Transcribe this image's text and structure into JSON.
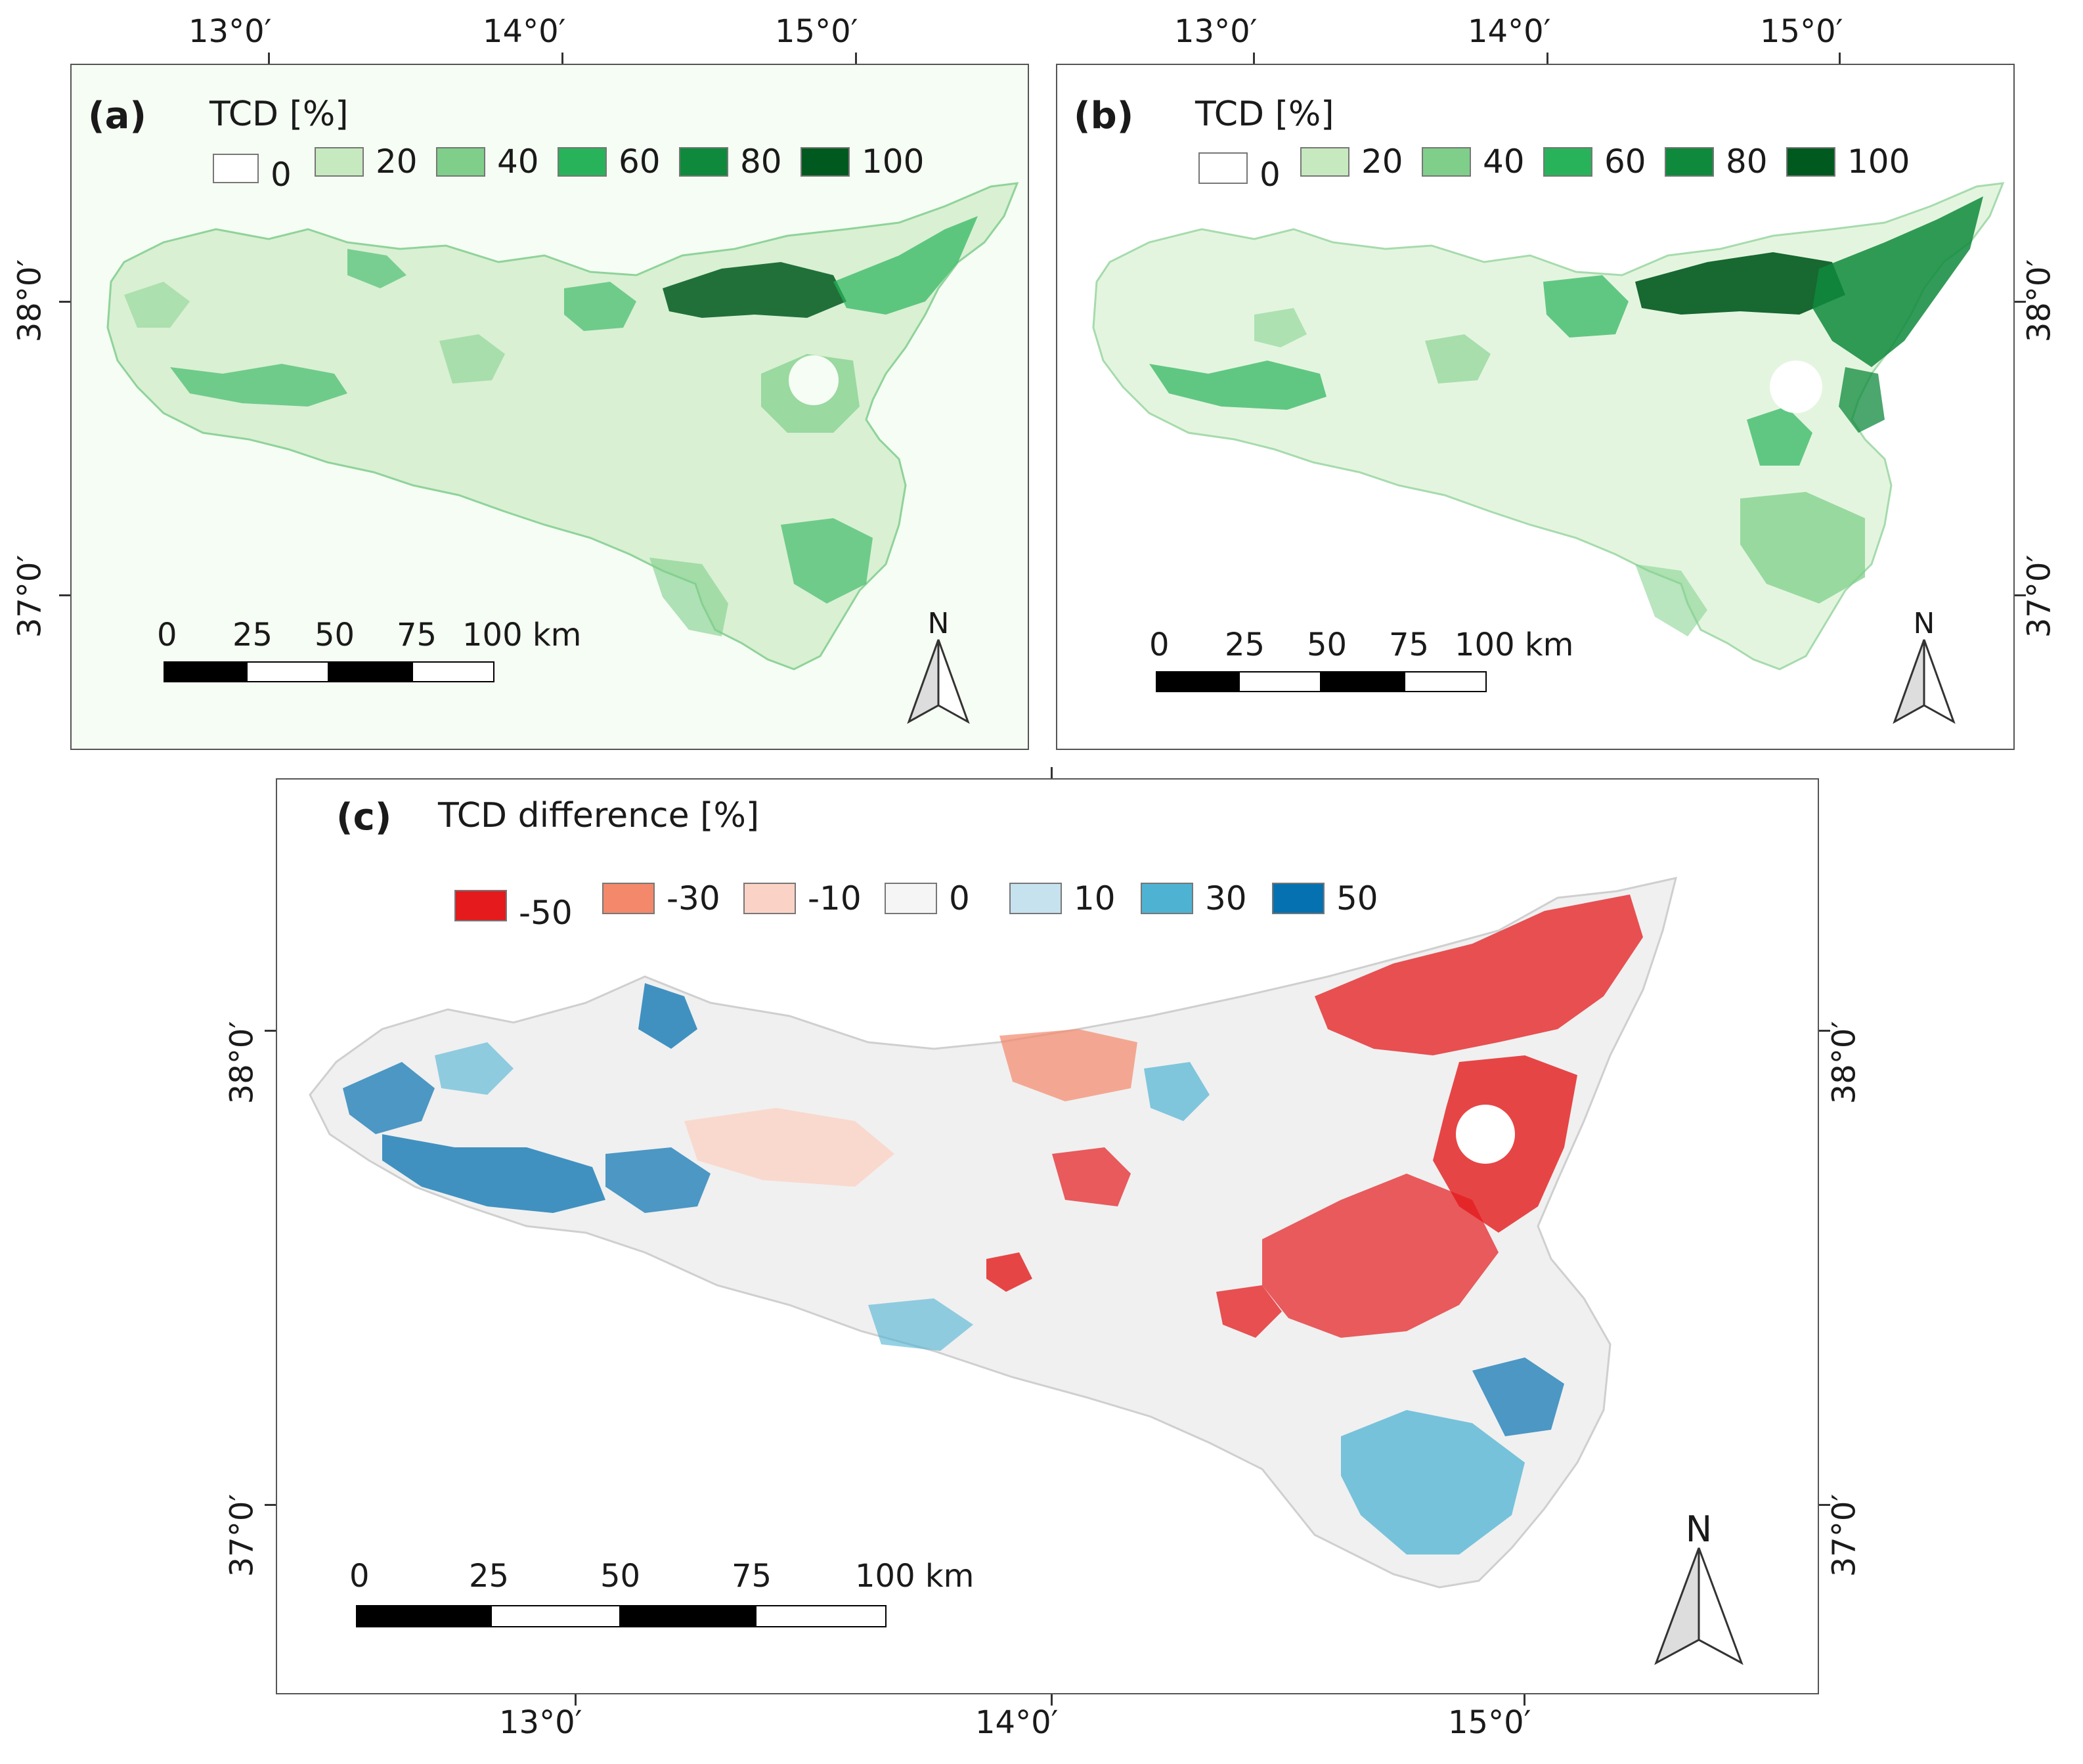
{
  "panel_a": {
    "label": "(a)",
    "legend_title": "TCD [%]",
    "legend": [
      {
        "value": "0",
        "color": "#ffffff"
      },
      {
        "value": "20",
        "color": "#c7e9c0"
      },
      {
        "value": "40",
        "color": "#7fcf8a"
      },
      {
        "value": "60",
        "color": "#28b35a"
      },
      {
        "value": "80",
        "color": "#0f8a3c"
      },
      {
        "value": "100",
        "color": "#00591e"
      }
    ]
  },
  "panel_b": {
    "label": "(b)",
    "legend_title": "TCD [%]",
    "legend": [
      {
        "value": "0",
        "color": "#ffffff"
      },
      {
        "value": "20",
        "color": "#c7e9c0"
      },
      {
        "value": "40",
        "color": "#7fcf8a"
      },
      {
        "value": "60",
        "color": "#28b35a"
      },
      {
        "value": "80",
        "color": "#0f8a3c"
      },
      {
        "value": "100",
        "color": "#00591e"
      }
    ]
  },
  "panel_c": {
    "label": "(c)",
    "legend_title": "TCD difference [%]",
    "legend": [
      {
        "value": "-50",
        "color": "#e41a1c"
      },
      {
        "value": "-30",
        "color": "#f4886a"
      },
      {
        "value": "-10",
        "color": "#fbd3c6"
      },
      {
        "value": "0",
        "color": "#f5f5f5"
      },
      {
        "value": "10",
        "color": "#c6e2ee"
      },
      {
        "value": "30",
        "color": "#4eb3d3"
      },
      {
        "value": "50",
        "color": "#0571b0"
      }
    ]
  },
  "axes": {
    "lon_labels": [
      "13°0′",
      "14°0′",
      "15°0′"
    ],
    "lat_labels": [
      "38°0′",
      "37°0′"
    ]
  },
  "scale": {
    "labels": [
      "0",
      "25",
      "50",
      "75",
      "100 km"
    ]
  },
  "north": {
    "letter": "N"
  },
  "colors": {
    "tcd_light": "#c7e9c0",
    "tcd_mid": "#7fcf8a",
    "tcd_dark": "#00591e",
    "diff_red": "#e41a1c",
    "diff_blue": "#0571b0",
    "diff_neutral": "#f2f2f2"
  }
}
